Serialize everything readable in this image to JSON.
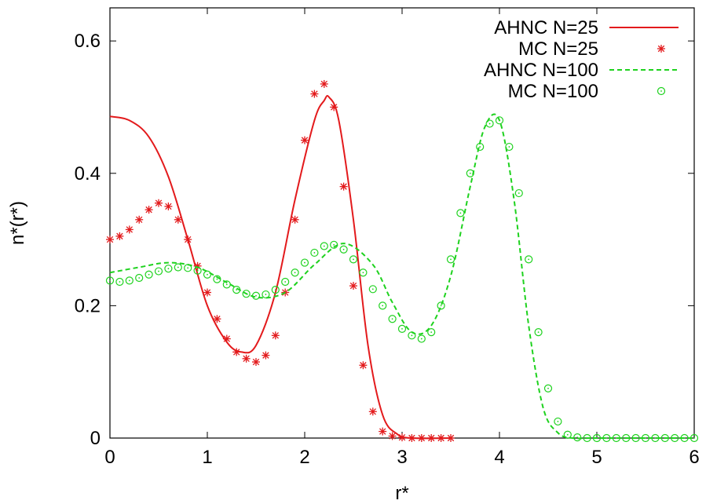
{
  "chart_data": {
    "type": "line",
    "title": "",
    "xlabel": "r*",
    "ylabel": "n*(r*)",
    "xlim": [
      0,
      6
    ],
    "ylim": [
      0,
      0.65
    ],
    "xticks": [
      "0",
      "1",
      "2",
      "3",
      "4",
      "5",
      "6"
    ],
    "yticks": [
      "0",
      "0.2",
      "0.4",
      "0.6"
    ],
    "grid": false,
    "legend_position": "top-right",
    "series": [
      {
        "name": "AHNC N=25",
        "style": "solid-line",
        "color": "#e31a1c",
        "x": [
          0,
          0.2,
          0.4,
          0.6,
          0.8,
          1.0,
          1.2,
          1.35,
          1.5,
          1.7,
          1.9,
          2.1,
          2.2,
          2.25,
          2.35,
          2.5,
          2.65,
          2.8,
          2.95,
          3.1,
          3.5
        ],
        "y": [
          0.486,
          0.48,
          0.455,
          0.395,
          0.3,
          0.2,
          0.145,
          0.13,
          0.14,
          0.22,
          0.36,
          0.48,
          0.51,
          0.515,
          0.48,
          0.33,
          0.14,
          0.035,
          0.006,
          0.0,
          0.0
        ]
      },
      {
        "name": "MC N=25",
        "style": "star-markers",
        "color": "#e31a1c",
        "x": [
          0,
          0.1,
          0.2,
          0.3,
          0.4,
          0.5,
          0.6,
          0.7,
          0.8,
          0.9,
          1.0,
          1.1,
          1.2,
          1.3,
          1.4,
          1.5,
          1.6,
          1.7,
          1.8,
          1.9,
          2.0,
          2.1,
          2.2,
          2.3,
          2.4,
          2.5,
          2.6,
          2.7,
          2.8,
          2.9,
          3.0,
          3.1,
          3.2,
          3.3,
          3.4,
          3.5
        ],
        "y": [
          0.3,
          0.305,
          0.315,
          0.33,
          0.345,
          0.355,
          0.35,
          0.33,
          0.3,
          0.26,
          0.22,
          0.18,
          0.15,
          0.13,
          0.12,
          0.115,
          0.125,
          0.155,
          0.22,
          0.33,
          0.45,
          0.52,
          0.535,
          0.5,
          0.38,
          0.23,
          0.11,
          0.04,
          0.01,
          0.003,
          0.001,
          0.0,
          0.0,
          0.0,
          0.0,
          0.0
        ]
      },
      {
        "name": "AHNC N=100",
        "style": "dashed-line",
        "color": "#1ed21e",
        "x": [
          0,
          0.3,
          0.6,
          0.9,
          1.2,
          1.5,
          1.8,
          2.1,
          2.4,
          2.7,
          2.9,
          3.1,
          3.3,
          3.5,
          3.7,
          3.85,
          4.0,
          4.15,
          4.3,
          4.45,
          4.6,
          4.75,
          5.0,
          6.0
        ],
        "y": [
          0.25,
          0.258,
          0.265,
          0.258,
          0.235,
          0.213,
          0.22,
          0.262,
          0.294,
          0.262,
          0.205,
          0.16,
          0.17,
          0.245,
          0.38,
          0.47,
          0.48,
          0.36,
          0.17,
          0.045,
          0.008,
          0.0,
          0.0,
          0.0
        ]
      },
      {
        "name": "MC N=100",
        "style": "circle-markers",
        "color": "#1ed21e",
        "x": [
          0,
          0.1,
          0.2,
          0.3,
          0.4,
          0.5,
          0.6,
          0.7,
          0.8,
          0.9,
          1.0,
          1.1,
          1.2,
          1.3,
          1.4,
          1.5,
          1.6,
          1.7,
          1.8,
          1.9,
          2.0,
          2.1,
          2.2,
          2.3,
          2.4,
          2.5,
          2.6,
          2.7,
          2.8,
          2.9,
          3.0,
          3.1,
          3.2,
          3.3,
          3.4,
          3.5,
          3.6,
          3.7,
          3.8,
          3.9,
          4.0,
          4.1,
          4.2,
          4.3,
          4.4,
          4.5,
          4.6,
          4.7,
          4.8,
          4.9,
          5.0,
          5.1,
          5.2,
          5.3,
          5.4,
          5.5,
          5.6,
          5.7,
          5.8,
          5.9,
          6.0
        ],
        "y": [
          0.238,
          0.236,
          0.238,
          0.242,
          0.247,
          0.252,
          0.256,
          0.258,
          0.257,
          0.253,
          0.247,
          0.24,
          0.232,
          0.224,
          0.218,
          0.215,
          0.217,
          0.224,
          0.236,
          0.25,
          0.265,
          0.28,
          0.29,
          0.292,
          0.285,
          0.27,
          0.25,
          0.225,
          0.2,
          0.18,
          0.165,
          0.155,
          0.15,
          0.16,
          0.2,
          0.27,
          0.34,
          0.4,
          0.44,
          0.475,
          0.48,
          0.44,
          0.37,
          0.27,
          0.16,
          0.075,
          0.025,
          0.005,
          0.001,
          0.0,
          0.0,
          0.0,
          0.0,
          0.0,
          0.0,
          0.0,
          0.0,
          0.0,
          0.0,
          0.0,
          0.0
        ]
      }
    ]
  }
}
